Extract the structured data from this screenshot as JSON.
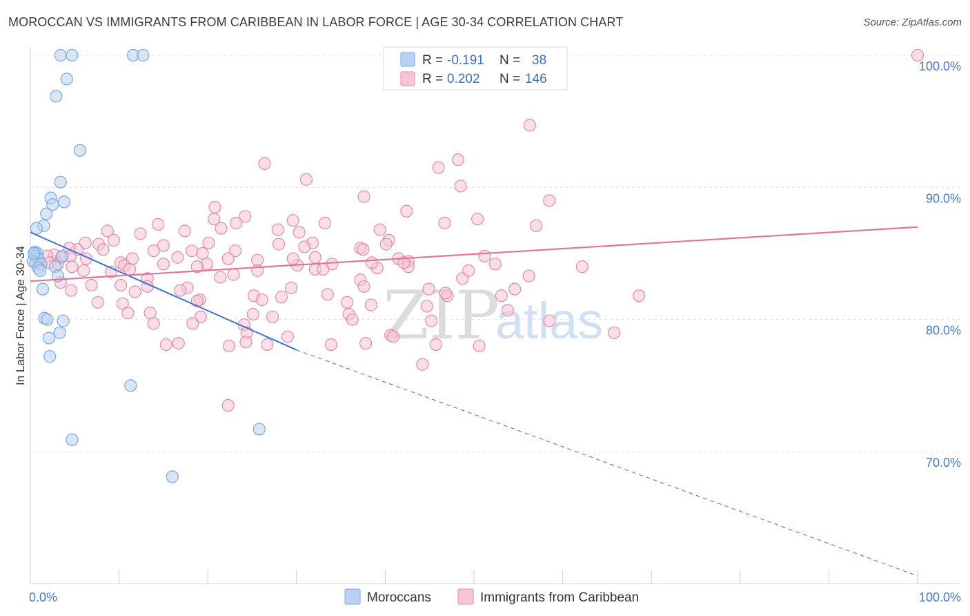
{
  "title": "MOROCCAN VS IMMIGRANTS FROM CARIBBEAN IN LABOR FORCE | AGE 30-34 CORRELATION CHART",
  "source": "Source: ZipAtlas.com",
  "watermark": {
    "zip": "ZIP",
    "atlas": "atlas"
  },
  "colors": {
    "moroccans": "#7aa6e0",
    "moroccans_fill": "#b9d2f1",
    "moroccans_line": "#3a73cc",
    "caribbean": "#e38aa8",
    "caribbean_fill": "#f7c4d5",
    "caribbean_line": "#e2739a",
    "grid": "#e4e4e4",
    "tick_text": "#4a78c4"
  },
  "legend": {
    "r_label": "R =",
    "n_label": "N =",
    "rows": [
      {
        "series": "Moroccans",
        "r": "-0.191",
        "n": "38"
      },
      {
        "series": "Immigrants from Caribbean",
        "r": "0.202",
        "n": "146"
      }
    ]
  },
  "chart_data": {
    "type": "scatter",
    "title": "MOROCCAN VS IMMIGRANTS FROM CARIBBEAN IN LABOR FORCE | AGE 30-34 CORRELATION CHART",
    "xlabel": "",
    "ylabel": "In Labor Force | Age 30-34",
    "xlim": [
      0,
      100
    ],
    "ylim": [
      60,
      102
    ],
    "x_tick_labels": [
      "0.0%",
      "100.0%"
    ],
    "y_ticks": [
      70,
      80,
      90,
      100
    ],
    "y_tick_labels": [
      "70.0%",
      "80.0%",
      "90.0%",
      "100.0%"
    ],
    "grid": true,
    "legend_position": "bottom",
    "series": [
      {
        "name": "Moroccans",
        "regression": {
          "x0": 0,
          "y0": 86.6,
          "x1": 30,
          "y1": 77.7,
          "dashed_to_x": 100,
          "dashed_to_y": 60.6
        },
        "points": [
          [
            3.4,
            100
          ],
          [
            4.7,
            100
          ],
          [
            11.6,
            100
          ],
          [
            12.7,
            100
          ],
          [
            4.1,
            98.2
          ],
          [
            2.9,
            96.9
          ],
          [
            5.6,
            92.8
          ],
          [
            3.4,
            90.4
          ],
          [
            2.3,
            89.2
          ],
          [
            3.8,
            88.9
          ],
          [
            2.5,
            88.7
          ],
          [
            1.8,
            88.0
          ],
          [
            1.5,
            87.1
          ],
          [
            0.7,
            86.9
          ],
          [
            0.5,
            85.1
          ],
          [
            0.8,
            85.0
          ],
          [
            0.6,
            84.8
          ],
          [
            0.9,
            84.6
          ],
          [
            3.6,
            84.8
          ],
          [
            0.3,
            84.4
          ],
          [
            0.6,
            84.3
          ],
          [
            1.2,
            84.2
          ],
          [
            2.8,
            84.0
          ],
          [
            0.9,
            83.9
          ],
          [
            1.1,
            83.7
          ],
          [
            3.1,
            83.3
          ],
          [
            1.4,
            82.3
          ],
          [
            1.6,
            80.1
          ],
          [
            1.9,
            80.0
          ],
          [
            3.7,
            79.9
          ],
          [
            3.3,
            79.0
          ],
          [
            2.1,
            78.6
          ],
          [
            2.2,
            77.2
          ],
          [
            11.3,
            75.0
          ],
          [
            4.7,
            70.9
          ],
          [
            25.8,
            71.7
          ],
          [
            16.0,
            68.1
          ],
          [
            0.4,
            85.0
          ]
        ]
      },
      {
        "name": "Immigrants from Caribbean",
        "regression": {
          "x0": 0,
          "y0": 82.9,
          "x1": 100,
          "y1": 87.0
        },
        "points": [
          [
            100,
            100
          ],
          [
            56.3,
            94.7
          ],
          [
            48.2,
            92.1
          ],
          [
            46.0,
            91.5
          ],
          [
            26.4,
            91.8
          ],
          [
            31.1,
            90.6
          ],
          [
            48.5,
            90.1
          ],
          [
            37.6,
            89.3
          ],
          [
            58.5,
            89.0
          ],
          [
            20.8,
            88.5
          ],
          [
            42.4,
            88.2
          ],
          [
            20.7,
            87.6
          ],
          [
            24.2,
            87.8
          ],
          [
            29.6,
            87.5
          ],
          [
            23.2,
            87.3
          ],
          [
            33.2,
            87.3
          ],
          [
            46.7,
            87.3
          ],
          [
            50.4,
            87.6
          ],
          [
            57.0,
            87.1
          ],
          [
            14.4,
            87.2
          ],
          [
            17.4,
            86.7
          ],
          [
            21.5,
            86.9
          ],
          [
            27.9,
            86.8
          ],
          [
            39.4,
            86.8
          ],
          [
            30.3,
            86.6
          ],
          [
            8.7,
            86.7
          ],
          [
            12.4,
            86.5
          ],
          [
            9.4,
            86.0
          ],
          [
            20.1,
            85.8
          ],
          [
            40.4,
            86.0
          ],
          [
            31.8,
            85.8
          ],
          [
            15.0,
            85.6
          ],
          [
            6.2,
            85.8
          ],
          [
            7.7,
            85.7
          ],
          [
            28.0,
            85.7
          ],
          [
            30.9,
            85.5
          ],
          [
            40.1,
            85.7
          ],
          [
            5.3,
            85.3
          ],
          [
            4.4,
            85.4
          ],
          [
            8.2,
            85.3
          ],
          [
            13.9,
            85.2
          ],
          [
            18.2,
            85.2
          ],
          [
            23.1,
            85.2
          ],
          [
            37.2,
            85.4
          ],
          [
            37.5,
            85.3
          ],
          [
            19.4,
            85.0
          ],
          [
            2.7,
            84.9
          ],
          [
            4.5,
            84.8
          ],
          [
            1.9,
            84.8
          ],
          [
            3.5,
            84.7
          ],
          [
            6.3,
            84.6
          ],
          [
            11.5,
            84.6
          ],
          [
            16.6,
            84.7
          ],
          [
            22.3,
            84.6
          ],
          [
            25.6,
            84.5
          ],
          [
            32.1,
            84.7
          ],
          [
            41.5,
            84.6
          ],
          [
            42.6,
            84.4
          ],
          [
            0.9,
            84.4
          ],
          [
            2.2,
            84.3
          ],
          [
            3.1,
            84.2
          ],
          [
            10.2,
            84.3
          ],
          [
            10.6,
            84.1
          ],
          [
            15.0,
            84.2
          ],
          [
            19.9,
            84.2
          ],
          [
            30.1,
            84.1
          ],
          [
            25.6,
            83.7
          ],
          [
            32.1,
            83.8
          ],
          [
            39.1,
            83.9
          ],
          [
            4.7,
            84.0
          ],
          [
            6.0,
            83.7
          ],
          [
            9.1,
            83.6
          ],
          [
            11.2,
            83.8
          ],
          [
            18.8,
            84.0
          ],
          [
            21.4,
            83.2
          ],
          [
            22.9,
            83.4
          ],
          [
            13.2,
            83.1
          ],
          [
            37.2,
            83.0
          ],
          [
            48.7,
            83.1
          ],
          [
            3.4,
            82.8
          ],
          [
            6.9,
            82.6
          ],
          [
            10.2,
            82.6
          ],
          [
            13.2,
            82.5
          ],
          [
            17.7,
            82.4
          ],
          [
            29.4,
            82.4
          ],
          [
            37.6,
            82.5
          ],
          [
            44.9,
            82.3
          ],
          [
            4.6,
            82.2
          ],
          [
            11.8,
            82.1
          ],
          [
            16.9,
            82.2
          ],
          [
            25.2,
            81.8
          ],
          [
            19.1,
            81.5
          ],
          [
            28.3,
            81.7
          ],
          [
            33.5,
            81.9
          ],
          [
            47.0,
            81.8
          ],
          [
            53.1,
            81.8
          ],
          [
            68.6,
            81.8
          ],
          [
            7.6,
            81.3
          ],
          [
            10.4,
            81.2
          ],
          [
            18.8,
            81.4
          ],
          [
            26.1,
            81.5
          ],
          [
            35.7,
            81.3
          ],
          [
            38.4,
            81.1
          ],
          [
            44.7,
            81.0
          ],
          [
            11.0,
            80.5
          ],
          [
            13.5,
            80.5
          ],
          [
            19.2,
            80.2
          ],
          [
            25.1,
            80.4
          ],
          [
            27.3,
            80.2
          ],
          [
            35.9,
            80.4
          ],
          [
            36.3,
            80.0
          ],
          [
            53.8,
            80.7
          ],
          [
            13.9,
            79.7
          ],
          [
            18.3,
            79.7
          ],
          [
            24.1,
            79.6
          ],
          [
            24.4,
            79.0
          ],
          [
            45.2,
            79.9
          ],
          [
            58.5,
            79.9
          ],
          [
            65.8,
            79.0
          ],
          [
            29.0,
            78.7
          ],
          [
            40.6,
            78.8
          ],
          [
            40.9,
            78.7
          ],
          [
            24.3,
            78.3
          ],
          [
            22.4,
            78.0
          ],
          [
            37.8,
            78.2
          ],
          [
            15.3,
            78.1
          ],
          [
            16.7,
            78.2
          ],
          [
            26.7,
            78.1
          ],
          [
            33.9,
            78.1
          ],
          [
            45.7,
            78.1
          ],
          [
            50.6,
            78.0
          ],
          [
            44.2,
            76.6
          ],
          [
            22.3,
            73.5
          ],
          [
            38.5,
            84.3
          ],
          [
            34.0,
            84.2
          ],
          [
            29.6,
            84.6
          ],
          [
            42.6,
            84.0
          ],
          [
            49.4,
            83.7
          ],
          [
            52.4,
            84.2
          ],
          [
            62.2,
            84.0
          ],
          [
            56.2,
            83.3
          ],
          [
            54.6,
            82.3
          ],
          [
            46.8,
            82.0
          ],
          [
            42.1,
            84.3
          ],
          [
            33.0,
            83.8
          ],
          [
            51.2,
            84.8
          ]
        ]
      }
    ]
  }
}
